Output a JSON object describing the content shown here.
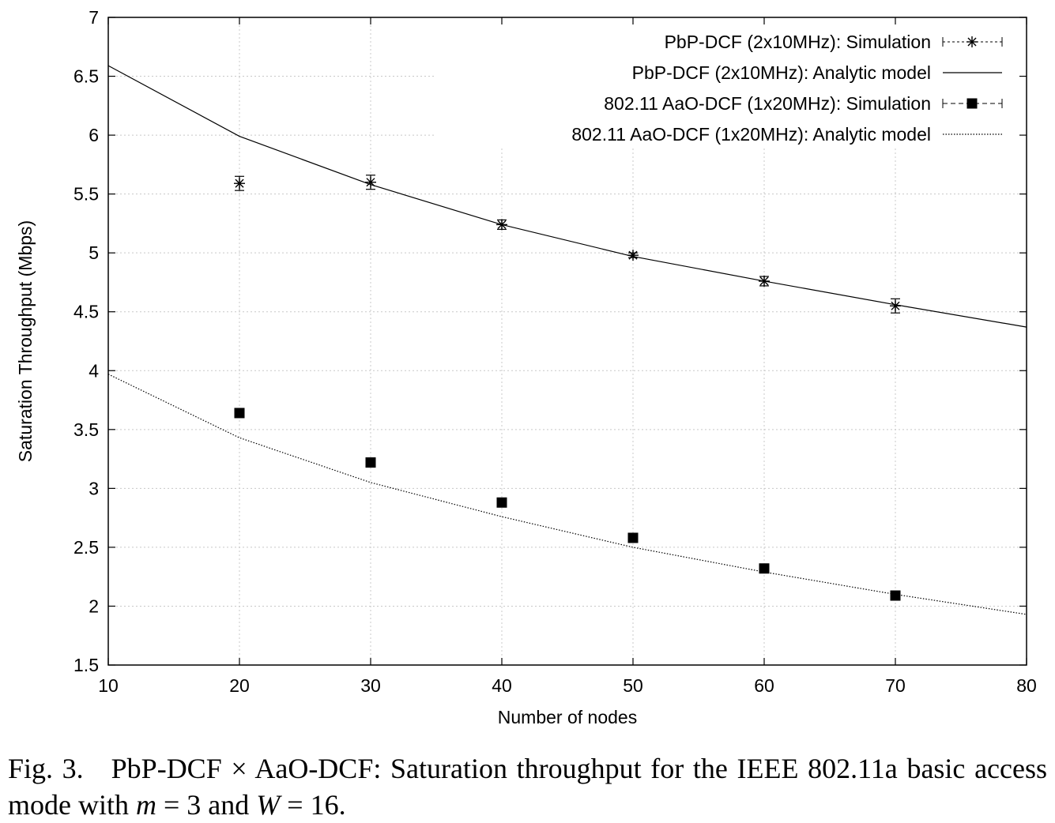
{
  "chart_data": {
    "type": "line",
    "title": "",
    "xlabel": "Number of nodes",
    "ylabel": "Saturation Throughput (Mbps)",
    "xlim": [
      10,
      80
    ],
    "ylim": [
      1.5,
      7
    ],
    "x_ticks": [
      10,
      20,
      30,
      40,
      50,
      60,
      70,
      80
    ],
    "x_tick_labels": [
      "10",
      "20",
      "30",
      "40",
      "50",
      "60",
      "70",
      "80"
    ],
    "y_ticks": [
      1.5,
      2,
      2.5,
      3,
      3.5,
      4,
      4.5,
      5,
      5.5,
      6,
      6.5,
      7
    ],
    "y_tick_labels": [
      "1.5",
      "2",
      "2.5",
      "3",
      "3.5",
      "4",
      "4.5",
      "5",
      "5.5",
      "6",
      "6.5",
      "7"
    ],
    "grid": true,
    "legend_position": "top-right",
    "series": [
      {
        "name": "PbP-DCF (2x10MHz): Simulation",
        "style": "points-star-errorbars",
        "x": [
          20,
          30,
          40,
          50,
          60,
          70
        ],
        "y": [
          5.59,
          5.6,
          5.24,
          4.98,
          4.76,
          4.55
        ],
        "error": [
          0.06,
          0.06,
          0.04,
          0.02,
          0.04,
          0.06
        ]
      },
      {
        "name": "PbP-DCF (2x10MHz): Analytic model",
        "style": "solid-line",
        "x": [
          10,
          20,
          30,
          40,
          50,
          60,
          70,
          80
        ],
        "y": [
          6.59,
          5.99,
          5.58,
          5.24,
          4.97,
          4.76,
          4.56,
          4.37
        ]
      },
      {
        "name": "802.11 AaO-DCF (1x20MHz): Simulation",
        "style": "points-filled-square",
        "x": [
          20,
          30,
          40,
          50,
          60,
          70
        ],
        "y": [
          3.64,
          3.22,
          2.88,
          2.58,
          2.32,
          2.09
        ]
      },
      {
        "name": "802.11 AaO-DCF (1x20MHz): Analytic model",
        "style": "dotted-line",
        "x": [
          10,
          20,
          30,
          40,
          50,
          60,
          70,
          80
        ],
        "y": [
          3.97,
          3.43,
          3.05,
          2.76,
          2.5,
          2.29,
          2.1,
          1.93
        ]
      }
    ]
  },
  "caption": {
    "label": "Fig. 3.",
    "text_1": "PbP-DCF × AaO-DCF: Saturation throughput for the IEEE 802.11a basic access mode with ",
    "m_var": "m",
    "eq_1": " = 3 and ",
    "w_var": "W",
    "eq_2": " = 16."
  }
}
